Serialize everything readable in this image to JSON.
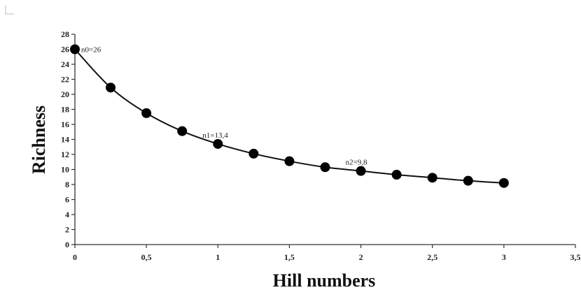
{
  "chart_data": {
    "type": "line",
    "title": "",
    "xlabel": "Hill numbers",
    "ylabel": "Richness",
    "xlim": [
      0,
      3.5
    ],
    "ylim": [
      0,
      28
    ],
    "x_ticks": [
      0,
      0.5,
      1,
      1.5,
      2,
      2.5,
      3,
      3.5
    ],
    "x_tick_labels": [
      "0",
      "0,5",
      "1",
      "1,5",
      "2",
      "2,5",
      "3",
      "3,5"
    ],
    "y_ticks": [
      0,
      2,
      4,
      6,
      8,
      10,
      12,
      14,
      16,
      18,
      20,
      22,
      24,
      26,
      28
    ],
    "y_tick_labels": [
      "0",
      "2",
      "4",
      "6",
      "8",
      "10",
      "12",
      "14",
      "16",
      "18",
      "20",
      "22",
      "24",
      "26",
      "28"
    ],
    "grid": false,
    "legend": "none",
    "series": [
      {
        "x": [
          0,
          0.25,
          0.5,
          0.75,
          1,
          1.25,
          1.5,
          1.75,
          2,
          2.25,
          2.5,
          2.75,
          3
        ],
        "values": [
          26,
          20.9,
          17.5,
          15.1,
          13.4,
          12.1,
          11.1,
          10.3,
          9.8,
          9.3,
          8.9,
          8.5,
          8.2
        ]
      }
    ],
    "annotations": [
      {
        "text": "n0=26",
        "x": 0,
        "y": 26
      },
      {
        "text": "n1=13,4",
        "x": 1,
        "y": 13.4
      },
      {
        "text": "n2=9,8",
        "x": 2,
        "y": 9.8
      }
    ],
    "colors": {
      "line": "#111111",
      "marker": "#000000",
      "axis": "#333333"
    }
  }
}
